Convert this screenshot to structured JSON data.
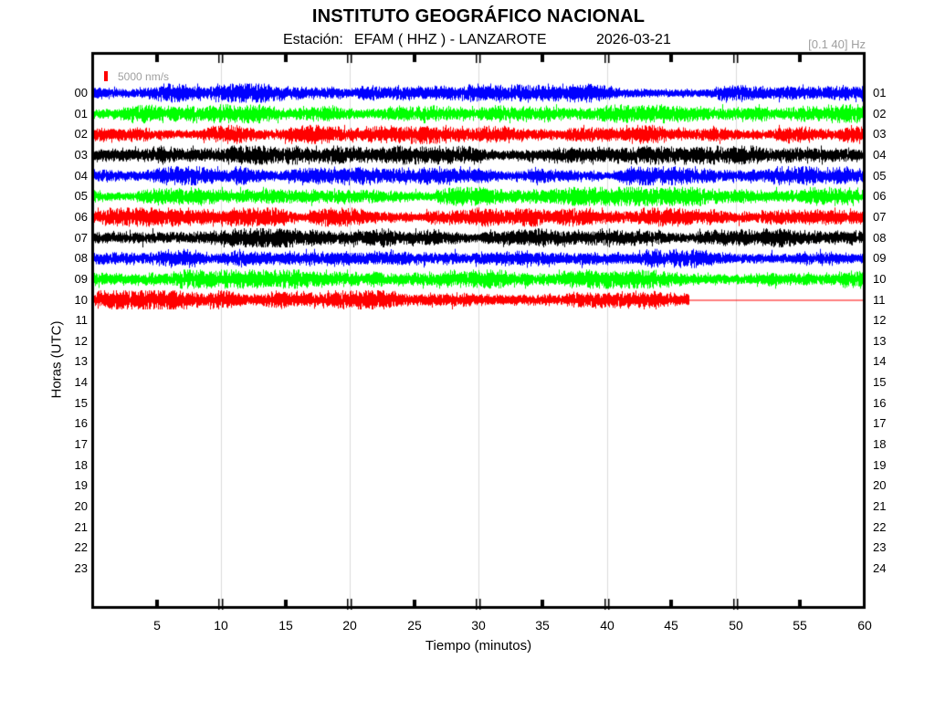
{
  "header": {
    "title": "INSTITUTO GEOGRÁFICO NACIONAL",
    "station_label": "Estación:",
    "station_value": "EFAM ( HHZ ) - LANZAROTE",
    "date": "2026-03-21",
    "filter_band": "[0.1 40] Hz"
  },
  "scale_bar": {
    "label": "5000 nm/s",
    "marker_color": "#ff0000"
  },
  "chart_data": {
    "type": "line",
    "subtype": "helicorder-seismogram",
    "title": "INSTITUTO GEOGRÁFICO NACIONAL",
    "subtitle": "Estación: EFAM ( HHZ ) - LANZAROTE 2026-03-21",
    "xlabel": "Tiempo (minutos)",
    "ylabel": "Horas (UTC)",
    "x_range_minutes": [
      0,
      60
    ],
    "x_tick_minutes": [
      5,
      10,
      15,
      20,
      25,
      30,
      35,
      40,
      45,
      50,
      55,
      60
    ],
    "grid_minutes": [
      10,
      20,
      30,
      40,
      50
    ],
    "rows_total": 24,
    "left_hour_labels": [
      "00",
      "01",
      "02",
      "03",
      "04",
      "05",
      "06",
      "07",
      "08",
      "09",
      "10",
      "11",
      "12",
      "13",
      "14",
      "15",
      "16",
      "17",
      "18",
      "19",
      "20",
      "21",
      "22",
      "23"
    ],
    "right_hour_labels": [
      "01",
      "02",
      "03",
      "04",
      "05",
      "06",
      "07",
      "08",
      "09",
      "10",
      "11",
      "12",
      "13",
      "14",
      "15",
      "16",
      "17",
      "18",
      "19",
      "20",
      "21",
      "22",
      "23",
      "24"
    ],
    "amplitude_scale_label": "5000 nm/s",
    "filter_band_label": "[0.1 40] Hz",
    "trace_color_cycle": [
      "#0000ff",
      "#00ff00",
      "#ff0000",
      "#000000"
    ],
    "traces": [
      {
        "hour": "00",
        "row": 0,
        "color": "#0000ff",
        "start_min": 0,
        "end_min": 60,
        "amplitude": 1.0,
        "seed": 11
      },
      {
        "hour": "01",
        "row": 1,
        "color": "#00ff00",
        "start_min": 0,
        "end_min": 60,
        "amplitude": 1.0,
        "seed": 22
      },
      {
        "hour": "02",
        "row": 2,
        "color": "#ff0000",
        "start_min": 0,
        "end_min": 60,
        "amplitude": 1.05,
        "seed": 33
      },
      {
        "hour": "03",
        "row": 3,
        "color": "#000000",
        "start_min": 0,
        "end_min": 60,
        "amplitude": 1.0,
        "seed": 44
      },
      {
        "hour": "04",
        "row": 4,
        "color": "#0000ff",
        "start_min": 0,
        "end_min": 60,
        "amplitude": 1.0,
        "seed": 55
      },
      {
        "hour": "05",
        "row": 5,
        "color": "#00ff00",
        "start_min": 0,
        "end_min": 60,
        "amplitude": 1.0,
        "seed": 66
      },
      {
        "hour": "06",
        "row": 6,
        "color": "#ff0000",
        "start_min": 0,
        "end_min": 60,
        "amplitude": 1.05,
        "seed": 77
      },
      {
        "hour": "07",
        "row": 7,
        "color": "#000000",
        "start_min": 0,
        "end_min": 60,
        "amplitude": 1.0,
        "seed": 88
      },
      {
        "hour": "08",
        "row": 8,
        "color": "#0000ff",
        "start_min": 0,
        "end_min": 60,
        "amplitude": 0.95,
        "seed": 99
      },
      {
        "hour": "09",
        "row": 9,
        "color": "#00ff00",
        "start_min": 0,
        "end_min": 60,
        "amplitude": 0.95,
        "seed": 110
      },
      {
        "hour": "10",
        "row": 10,
        "color": "#ff0000",
        "start_min": 0,
        "end_min": 46.3,
        "amplitude": 1.0,
        "seed": 121,
        "flat_line_to_min": 60
      }
    ]
  },
  "colors": {
    "background": "#ffffff",
    "frame": "#000000",
    "grid": "#dcdcdc",
    "muted_text": "#9f9f9f"
  }
}
